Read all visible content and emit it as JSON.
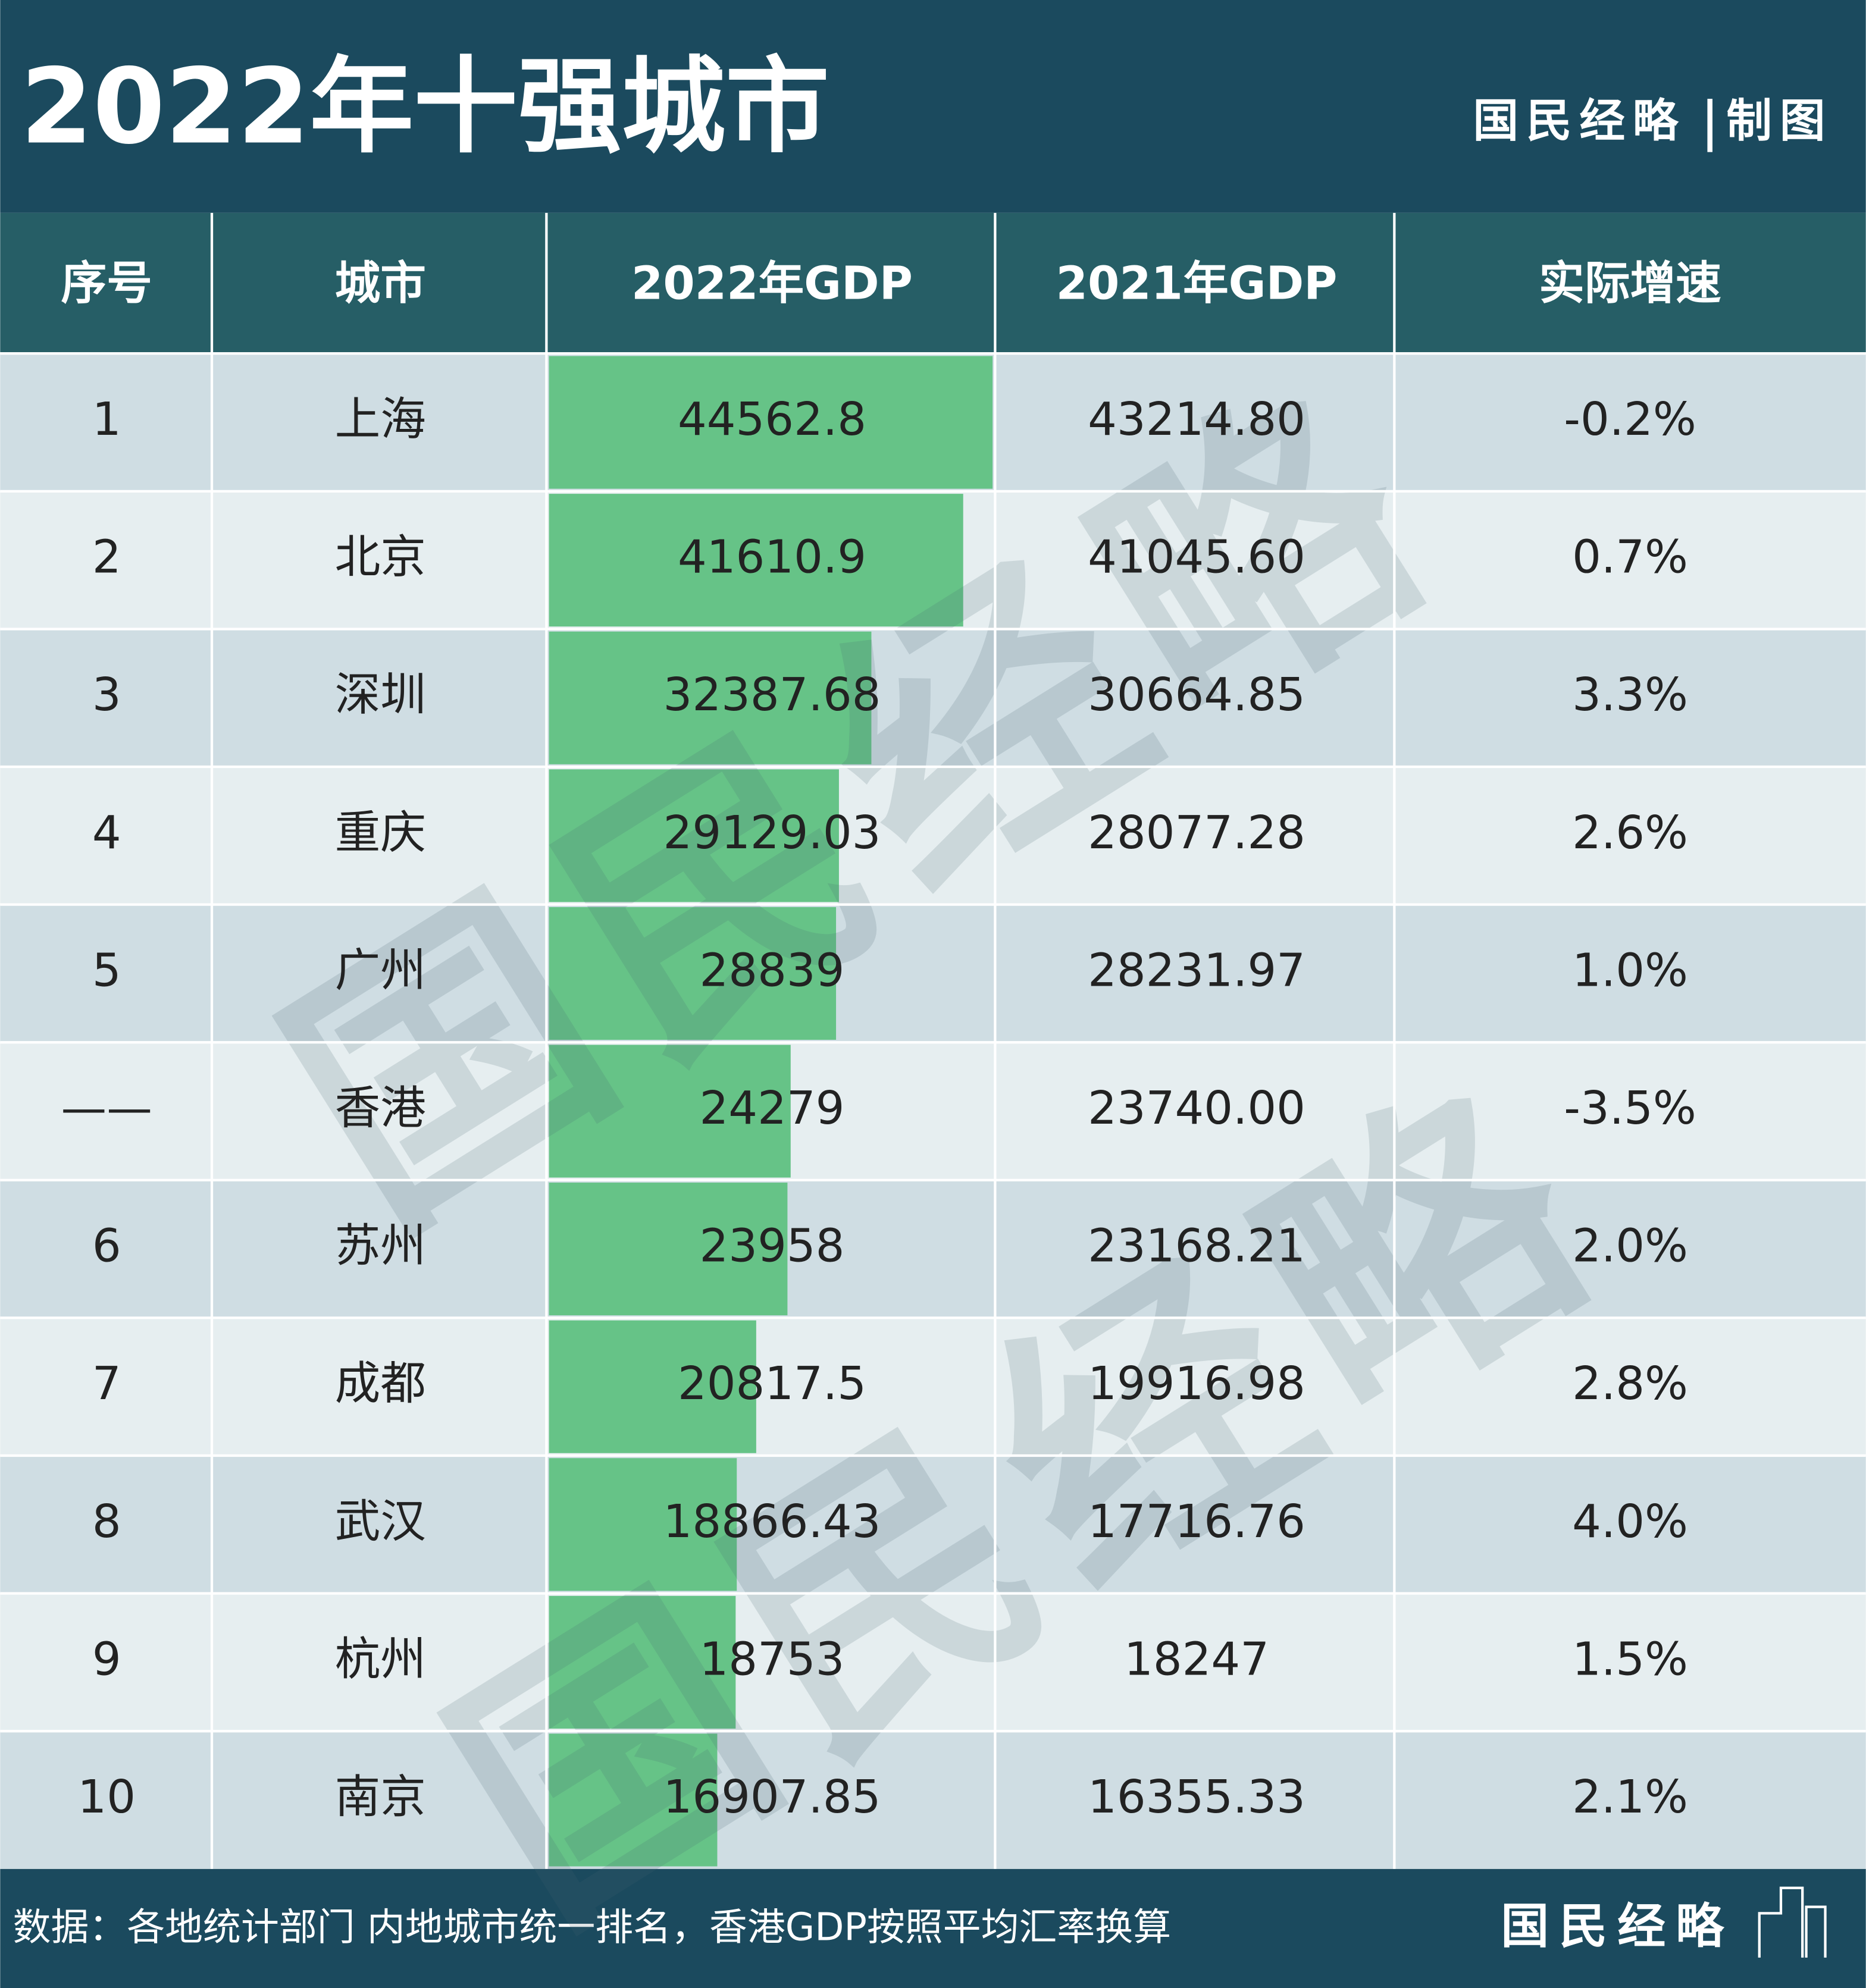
{
  "header": {
    "title": "2022年十强城市",
    "credit": "国民经略",
    "credit_suffix": "制图"
  },
  "table": {
    "columns": [
      "序号",
      "城市",
      "2022年GDP",
      "2021年GDP",
      "实际增速"
    ],
    "rows": [
      [
        "1",
        "上海",
        "44562.8",
        "43214.80",
        "-0.2%"
      ],
      [
        "2",
        "北京",
        "41610.9",
        "41045.60",
        "0.7%"
      ],
      [
        "3",
        "深圳",
        "32387.68",
        "30664.85",
        "3.3%"
      ],
      [
        "4",
        "重庆",
        "29129.03",
        "28077.28",
        "2.6%"
      ],
      [
        "5",
        "广州",
        "28839",
        "28231.97",
        "1.0%"
      ],
      [
        "——",
        "香港",
        "24279",
        "23740.00",
        "-3.5%"
      ],
      [
        "6",
        "苏州",
        "23958",
        "23168.21",
        "2.0%"
      ],
      [
        "7",
        "成都",
        "20817.5",
        "19916.98",
        "2.8%"
      ],
      [
        "8",
        "武汉",
        "18866.43",
        "17716.76",
        "4.0%"
      ],
      [
        "9",
        "杭州",
        "18753",
        "18247",
        "1.5%"
      ],
      [
        "10",
        "南京",
        "16907.85",
        "16355.33",
        "2.1%"
      ]
    ]
  },
  "watermark": "国民经略",
  "footer": {
    "note": "数据：各地统计部门  内地城市统一排名，香港GDP按照平均汇率换算",
    "brand": "国民经略"
  }
}
